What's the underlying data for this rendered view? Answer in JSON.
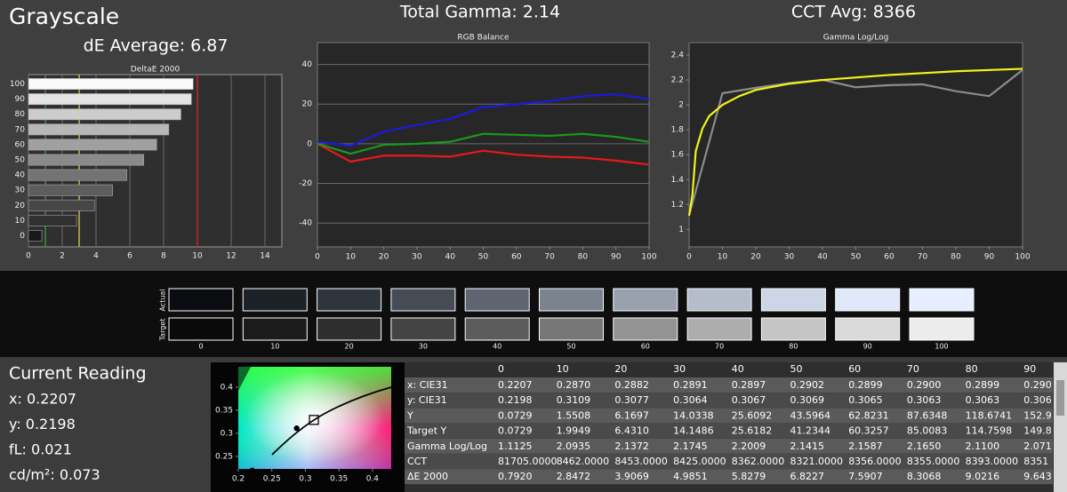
{
  "header": {
    "title": "Grayscale",
    "de_average": "dE Average: 6.87",
    "total_gamma": "Total Gamma: 2.14",
    "cct_avg": "CCT Avg: 8366"
  },
  "chart_data": [
    {
      "type": "hbar",
      "title": "DeltaE 2000",
      "categories": [
        "0",
        "10",
        "20",
        "30",
        "40",
        "50",
        "60",
        "70",
        "80",
        "90",
        "100"
      ],
      "values": [
        0.792,
        2.8472,
        3.9069,
        4.9851,
        5.8279,
        6.8227,
        7.5907,
        8.3068,
        9.0216,
        9.643,
        9.75
      ],
      "xlim": [
        0,
        15
      ],
      "xticks": [
        0,
        2,
        4,
        6,
        8,
        10,
        12,
        14
      ],
      "grid": true,
      "thresholds": [
        {
          "value": 1,
          "color": "#3f9c3f"
        },
        {
          "value": 3,
          "color": "#d8d040"
        },
        {
          "value": 10,
          "color": "#e02424"
        }
      ]
    },
    {
      "type": "line",
      "title": "RGB Balance",
      "x": [
        0,
        10,
        20,
        30,
        40,
        50,
        60,
        70,
        80,
        90,
        100
      ],
      "series": [
        {
          "color": "#e81818",
          "values": [
            0,
            -9,
            -6,
            -6,
            -6.5,
            -3.5,
            -5.5,
            -6.5,
            -7,
            -8.5,
            -10.5
          ]
        },
        {
          "color": "#1a9a1a",
          "values": [
            0,
            -5,
            -0.5,
            0,
            1,
            5,
            4.5,
            4,
            5,
            3.5,
            1
          ]
        },
        {
          "color": "#1a1ae0",
          "values": [
            1,
            -1,
            6,
            9.5,
            12.5,
            18.5,
            20,
            21.5,
            24,
            25,
            22.5
          ]
        }
      ],
      "xlim": [
        0,
        100
      ],
      "xticks": [
        0,
        10,
        20,
        30,
        40,
        50,
        60,
        70,
        80,
        90,
        100
      ],
      "ylim": [
        -52,
        51
      ],
      "yticks": [
        -40,
        -20,
        0,
        20,
        40
      ],
      "grid": true
    },
    {
      "type": "line",
      "title": "Gamma Log/Log",
      "series": [
        {
          "color": "#8c8c8c",
          "x": [
            0,
            10,
            20,
            30,
            40,
            50,
            60,
            70,
            80,
            90,
            100
          ],
          "values": [
            1.1125,
            2.0935,
            2.1372,
            2.1745,
            2.2009,
            2.1415,
            2.1587,
            2.165,
            2.11,
            2.071,
            2.28
          ]
        },
        {
          "color": "#f2f21a",
          "x": [
            0,
            1,
            2,
            4,
            6,
            10,
            15,
            20,
            30,
            40,
            60,
            80,
            100
          ],
          "values": [
            1.11,
            1.28,
            1.63,
            1.81,
            1.91,
            2.0,
            2.07,
            2.12,
            2.17,
            2.2,
            2.24,
            2.27,
            2.29
          ]
        }
      ],
      "xlim": [
        0,
        100
      ],
      "xticks": [
        0,
        10,
        20,
        30,
        40,
        50,
        60,
        70,
        80,
        90,
        100
      ],
      "ylim": [
        0.86,
        2.5
      ],
      "yticks": [
        1,
        1.2,
        1.4,
        1.6,
        1.8,
        2,
        2.2,
        2.4
      ],
      "grid": false
    },
    {
      "type": "scatter",
      "series": [
        {
          "color": "#000000",
          "x": [
            0.2207,
            0.287
          ],
          "values": [
            0.2198,
            0.3109
          ]
        }
      ],
      "white_point": {
        "x": 0.3127,
        "y": 0.329
      },
      "xlim": [
        0.2,
        0.428
      ],
      "xticks": [
        0.2,
        0.25,
        0.3,
        0.35,
        0.4
      ],
      "ylim": [
        0.223,
        0.444
      ],
      "yticks": [
        0.25,
        0.3,
        0.35,
        0.4
      ]
    }
  ],
  "swatches": {
    "actual_label": "Actual",
    "target_label": "Target",
    "labels": [
      "0",
      "10",
      "20",
      "30",
      "40",
      "50",
      "60",
      "70",
      "80",
      "90",
      "100"
    ],
    "actual_colors": [
      "#0b0c10",
      "#1c2127",
      "#2f353c",
      "#454c56",
      "#5e6570",
      "#7b838f",
      "#99a1af",
      "#b4bdcc",
      "#cdd6e6",
      "#dfe8f8",
      "#e6efff"
    ],
    "target_colors": [
      "#0a0a0a",
      "#1b1b1b",
      "#2e2e2e",
      "#444444",
      "#5c5c5c",
      "#777777",
      "#939393",
      "#adadad",
      "#c5c5c5",
      "#dadada",
      "#ececec"
    ]
  },
  "current_reading": {
    "title": "Current Reading",
    "lines": [
      "x: 0.2207",
      "y: 0.2198",
      "fL: 0.021",
      "cd/m²: 0.073"
    ]
  },
  "table": {
    "columns": [
      "0",
      "10",
      "20",
      "30",
      "40",
      "50",
      "60",
      "70",
      "80",
      "90"
    ],
    "rows": [
      {
        "label": "x: CIE31",
        "cells": [
          "0.2207",
          "0.2870",
          "0.2882",
          "0.2891",
          "0.2897",
          "0.2902",
          "0.2899",
          "0.2900",
          "0.2899",
          "0.290"
        ]
      },
      {
        "label": "y: CIE31",
        "cells": [
          "0.2198",
          "0.3109",
          "0.3077",
          "0.3064",
          "0.3067",
          "0.3069",
          "0.3065",
          "0.3063",
          "0.3063",
          "0.306"
        ]
      },
      {
        "label": "Y",
        "cells": [
          "0.0729",
          "1.5508",
          "6.1697",
          "14.0338",
          "25.6092",
          "43.5964",
          "62.8231",
          "87.6348",
          "118.6741",
          "152.9"
        ]
      },
      {
        "label": "Target Y",
        "cells": [
          "0.0729",
          "1.9949",
          "6.4310",
          "14.1486",
          "25.6182",
          "41.2344",
          "60.3257",
          "85.0083",
          "114.7598",
          "149.8"
        ]
      },
      {
        "label": "Gamma Log/Log",
        "cells": [
          "1.1125",
          "2.0935",
          "2.1372",
          "2.1745",
          "2.2009",
          "2.1415",
          "2.1587",
          "2.1650",
          "2.1100",
          "2.071"
        ]
      },
      {
        "label": "CCT",
        "cells": [
          "81705.0000",
          "8462.0000",
          "8453.0000",
          "8425.0000",
          "8362.0000",
          "8321.0000",
          "8356.0000",
          "8355.0000",
          "8393.0000",
          "8351"
        ]
      },
      {
        "label": "ΔE 2000",
        "cells": [
          "0.7920",
          "2.8472",
          "3.9069",
          "4.9851",
          "5.8279",
          "6.8227",
          "7.5907",
          "8.3068",
          "9.0216",
          "9.643"
        ]
      }
    ]
  }
}
